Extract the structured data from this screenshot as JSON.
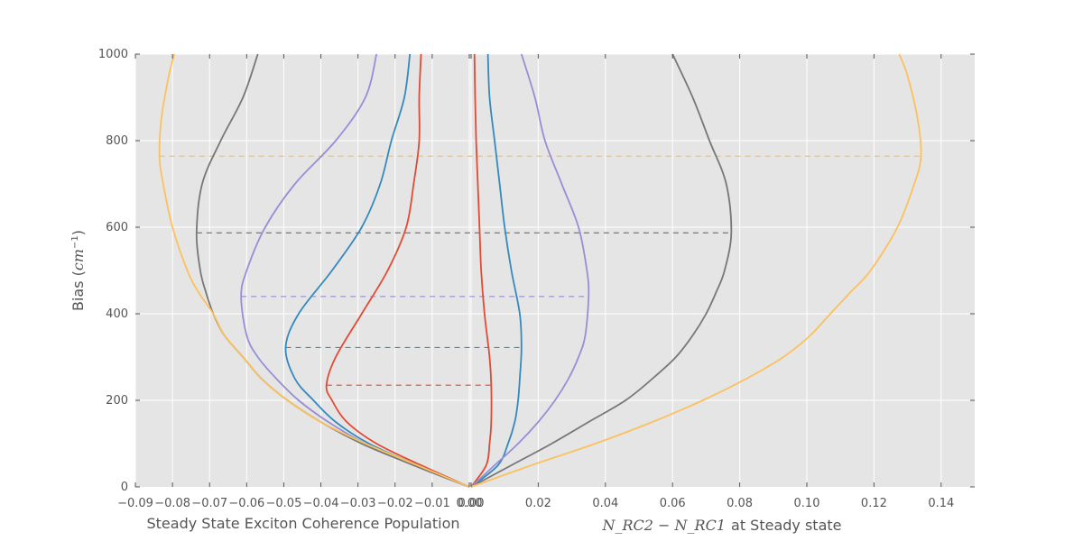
{
  "chart_data": {
    "type": "line",
    "ylabel_main": "Bias (",
    "ylabel_unit": "cm",
    "ylabel_exp": "−1",
    "ylabel_close": ")",
    "ylim": [
      0,
      1000
    ],
    "grid": true,
    "y_ticks": [
      "0",
      "200",
      "400",
      "600",
      "800",
      "1000"
    ],
    "panels": [
      {
        "xlabel": "Steady State Exciton Coherence Population",
        "xlim": [
          -0.09,
          0.0
        ],
        "x_ticks": [
          "−0.09",
          "−0.08",
          "−0.07",
          "−0.06",
          "−0.05",
          "−0.04",
          "−0.03",
          "−0.02",
          "−0.01",
          "0.00"
        ],
        "series": [
          {
            "color": "#E24A33",
            "peak_bias": 235,
            "peak_value": -0.0385,
            "points": [
              [
                0,
                0
              ],
              [
                50,
                -0.013
              ],
              [
                100,
                -0.025
              ],
              [
                150,
                -0.033
              ],
              [
                200,
                -0.037
              ],
              [
                235,
                -0.0385
              ],
              [
                300,
                -0.036
              ],
              [
                400,
                -0.029
              ],
              [
                500,
                -0.022
              ],
              [
                600,
                -0.017
              ],
              [
                700,
                -0.015
              ],
              [
                800,
                -0.0135
              ],
              [
                900,
                -0.0135
              ],
              [
                1000,
                -0.013
              ]
            ]
          },
          {
            "color": "#348ABD",
            "peak_bias": 322,
            "peak_value": -0.0495,
            "points": [
              [
                0,
                0
              ],
              [
                50,
                -0.014
              ],
              [
                100,
                -0.027
              ],
              [
                150,
                -0.036
              ],
              [
                200,
                -0.042
              ],
              [
                250,
                -0.047
              ],
              [
                322,
                -0.0495
              ],
              [
                400,
                -0.046
              ],
              [
                500,
                -0.037
              ],
              [
                600,
                -0.029
              ],
              [
                700,
                -0.024
              ],
              [
                800,
                -0.021
              ],
              [
                900,
                -0.0175
              ],
              [
                1000,
                -0.016
              ]
            ]
          },
          {
            "color": "#988ED5",
            "peak_bias": 440,
            "peak_value": -0.0615,
            "points": [
              [
                0,
                0
              ],
              [
                50,
                -0.015
              ],
              [
                100,
                -0.028
              ],
              [
                150,
                -0.038
              ],
              [
                200,
                -0.046
              ],
              [
                250,
                -0.052
              ],
              [
                300,
                -0.057
              ],
              [
                350,
                -0.06
              ],
              [
                440,
                -0.0615
              ],
              [
                500,
                -0.06
              ],
              [
                600,
                -0.055
              ],
              [
                700,
                -0.047
              ],
              [
                800,
                -0.036
              ],
              [
                900,
                -0.028
              ],
              [
                1000,
                -0.025
              ]
            ]
          },
          {
            "color": "#777777",
            "peak_bias": 587,
            "peak_value": -0.0735,
            "points": [
              [
                0,
                0
              ],
              [
                50,
                -0.015
              ],
              [
                100,
                -0.029
              ],
              [
                150,
                -0.04
              ],
              [
                200,
                -0.049
              ],
              [
                250,
                -0.056
              ],
              [
                300,
                -0.061
              ],
              [
                350,
                -0.066
              ],
              [
                400,
                -0.069
              ],
              [
                450,
                -0.071
              ],
              [
                500,
                -0.0725
              ],
              [
                587,
                -0.0735
              ],
              [
                700,
                -0.072
              ],
              [
                800,
                -0.067
              ],
              [
                900,
                -0.061
              ],
              [
                1000,
                -0.057
              ]
            ]
          },
          {
            "color": "#FBC15E",
            "peak_bias": 764,
            "peak_value": -0.0835,
            "points": [
              [
                0,
                0
              ],
              [
                50,
                -0.014
              ],
              [
                100,
                -0.028
              ],
              [
                150,
                -0.04
              ],
              [
                200,
                -0.049
              ],
              [
                250,
                -0.056
              ],
              [
                300,
                -0.061
              ],
              [
                350,
                -0.066
              ],
              [
                400,
                -0.069
              ],
              [
                450,
                -0.073
              ],
              [
                500,
                -0.076
              ],
              [
                600,
                -0.08
              ],
              [
                700,
                -0.0825
              ],
              [
                764,
                -0.0835
              ],
              [
                850,
                -0.083
              ],
              [
                950,
                -0.081
              ],
              [
                1000,
                -0.0795
              ]
            ]
          }
        ]
      },
      {
        "xlabel": "at Steady state",
        "xlabel_math": "N_RC2 − N_RC1",
        "xlim": [
          0.0,
          0.15
        ],
        "x_ticks": [
          "0.00",
          "0.02",
          "0.04",
          "0.06",
          "0.08",
          "0.10",
          "0.12",
          "0.14"
        ],
        "series": [
          {
            "color": "#E24A33",
            "peak_bias": 235,
            "peak_value": 0.006,
            "points": [
              [
                0,
                0
              ],
              [
                50,
                0.0045
              ],
              [
                100,
                0.0055
              ],
              [
                150,
                0.006
              ],
              [
                235,
                0.006
              ],
              [
                300,
                0.0055
              ],
              [
                400,
                0.004
              ],
              [
                500,
                0.003
              ],
              [
                600,
                0.0025
              ],
              [
                700,
                0.002
              ],
              [
                800,
                0.0015
              ],
              [
                900,
                0.0012
              ],
              [
                1000,
                0.001
              ]
            ]
          },
          {
            "color": "#348ABD",
            "peak_bias": 322,
            "peak_value": 0.015,
            "points": [
              [
                0,
                0
              ],
              [
                50,
                0.008
              ],
              [
                100,
                0.011
              ],
              [
                150,
                0.013
              ],
              [
                200,
                0.014
              ],
              [
                250,
                0.0145
              ],
              [
                322,
                0.015
              ],
              [
                400,
                0.0145
              ],
              [
                500,
                0.012
              ],
              [
                600,
                0.01
              ],
              [
                700,
                0.0085
              ],
              [
                800,
                0.007
              ],
              [
                900,
                0.0055
              ],
              [
                1000,
                0.005
              ]
            ]
          },
          {
            "color": "#988ED5",
            "peak_bias": 440,
            "peak_value": 0.035,
            "points": [
              [
                0,
                0
              ],
              [
                50,
                0.007
              ],
              [
                100,
                0.014
              ],
              [
                150,
                0.02
              ],
              [
                200,
                0.025
              ],
              [
                250,
                0.029
              ],
              [
                300,
                0.032
              ],
              [
                350,
                0.034
              ],
              [
                440,
                0.035
              ],
              [
                500,
                0.0345
              ],
              [
                600,
                0.032
              ],
              [
                700,
                0.027
              ],
              [
                800,
                0.022
              ],
              [
                900,
                0.019
              ],
              [
                1000,
                0.015
              ]
            ]
          },
          {
            "color": "#777777",
            "peak_bias": 587,
            "peak_value": 0.0775,
            "points": [
              [
                0,
                0
              ],
              [
                50,
                0.012
              ],
              [
                100,
                0.024
              ],
              [
                150,
                0.035
              ],
              [
                200,
                0.046
              ],
              [
                250,
                0.054
              ],
              [
                300,
                0.061
              ],
              [
                350,
                0.066
              ],
              [
                400,
                0.07
              ],
              [
                450,
                0.073
              ],
              [
                500,
                0.0755
              ],
              [
                587,
                0.0775
              ],
              [
                700,
                0.076
              ],
              [
                800,
                0.071
              ],
              [
                900,
                0.066
              ],
              [
                1000,
                0.06
              ]
            ]
          },
          {
            "color": "#FBC15E",
            "peak_bias": 764,
            "peak_value": 0.134,
            "points": [
              [
                0,
                0
              ],
              [
                50,
                0.018
              ],
              [
                100,
                0.037
              ],
              [
                150,
                0.054
              ],
              [
                200,
                0.069
              ],
              [
                250,
                0.082
              ],
              [
                300,
                0.093
              ],
              [
                350,
                0.101
              ],
              [
                400,
                0.107
              ],
              [
                450,
                0.113
              ],
              [
                500,
                0.119
              ],
              [
                600,
                0.127
              ],
              [
                700,
                0.132
              ],
              [
                764,
                0.134
              ],
              [
                850,
                0.133
              ],
              [
                950,
                0.13
              ],
              [
                1000,
                0.1275
              ]
            ]
          }
        ]
      }
    ]
  }
}
